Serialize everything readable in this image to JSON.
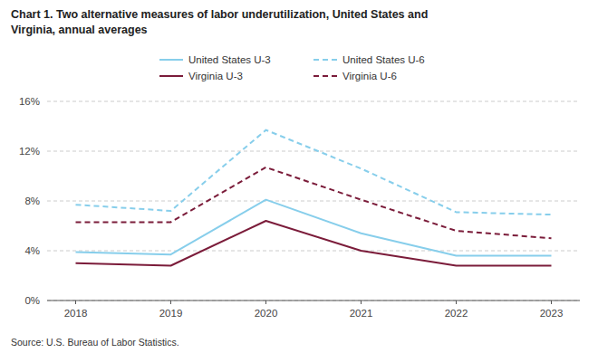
{
  "chart_data": {
    "type": "line",
    "title": [
      "Chart 1. Two alternative measures of labor underutilization, United States and",
      "Virginia, annual averages"
    ],
    "annotations": [
      "Source: U.S. Bureau of Labor Statistics."
    ],
    "x": [
      2018,
      2019,
      2020,
      2021,
      2022,
      2023
    ],
    "series": [
      {
        "name": "United States U-3",
        "color": "#87CEEB",
        "line_style": "solid",
        "values": [
          3.9,
          3.7,
          8.1,
          5.4,
          3.6,
          3.6
        ]
      },
      {
        "name": "United States U-6",
        "color": "#87CEEB",
        "line_style": "dashed",
        "values": [
          7.7,
          7.2,
          13.7,
          10.6,
          7.1,
          6.9
        ]
      },
      {
        "name": "Virginia U-3",
        "color": "#7B1C3A",
        "line_style": "solid",
        "values": [
          3.0,
          2.8,
          6.4,
          4.0,
          2.8,
          2.8
        ]
      },
      {
        "name": "Virginia U-6",
        "color": "#7B1C3A",
        "line_style": "dashed",
        "values": [
          6.3,
          6.3,
          10.7,
          8.1,
          5.6,
          5.0
        ]
      }
    ],
    "xlim": [
      2017.7,
      2023.3
    ],
    "xticks": [
      2018,
      2019,
      2020,
      2021,
      2022,
      2023
    ],
    "ylim": [
      0,
      16
    ],
    "yticks": [
      {
        "value": 0,
        "label": "0%"
      },
      {
        "value": 4,
        "label": "4%"
      },
      {
        "value": 8,
        "label": "8%"
      },
      {
        "value": 12,
        "label": "12%"
      },
      {
        "value": 16,
        "label": "16%"
      }
    ],
    "grid": true,
    "legend": "top"
  }
}
